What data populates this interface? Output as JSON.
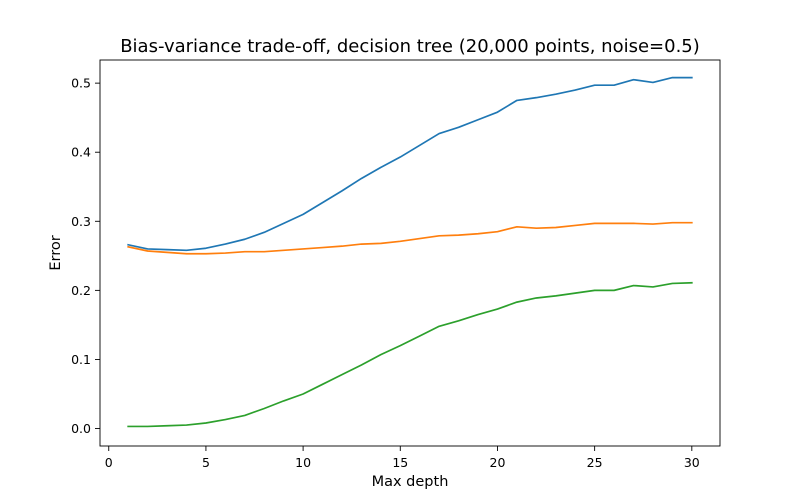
{
  "chart_data": {
    "type": "line",
    "title": "Bias-variance trade-off, decision tree (20,000 points, noise=0.5)",
    "xlabel": "Max depth",
    "ylabel": "Error",
    "xlim": [
      -0.45,
      31.45
    ],
    "ylim": [
      -0.0253,
      0.5335
    ],
    "xticks": [
      0,
      5,
      10,
      15,
      20,
      25,
      30
    ],
    "yticks": [
      0.0,
      0.1,
      0.2,
      0.3,
      0.4,
      0.5
    ],
    "xtick_labels": [
      "0",
      "5",
      "10",
      "15",
      "20",
      "25",
      "30"
    ],
    "ytick_labels": [
      "0.0",
      "0.1",
      "0.2",
      "0.3",
      "0.4",
      "0.5"
    ],
    "grid": false,
    "legend": "none",
    "x": [
      1,
      2,
      3,
      4,
      5,
      6,
      7,
      8,
      9,
      10,
      11,
      12,
      13,
      14,
      15,
      16,
      17,
      18,
      19,
      20,
      21,
      22,
      23,
      24,
      25,
      26,
      27,
      28,
      29,
      30
    ],
    "series": [
      {
        "color": "#1f77b4",
        "values": [
          0.266,
          0.26,
          0.259,
          0.258,
          0.261,
          0.267,
          0.274,
          0.284,
          0.297,
          0.31,
          0.327,
          0.344,
          0.362,
          0.378,
          0.393,
          0.41,
          0.427,
          0.436,
          0.447,
          0.458,
          0.475,
          0.479,
          0.484,
          0.49,
          0.497,
          0.497,
          0.505,
          0.501,
          0.508,
          0.508
        ]
      },
      {
        "color": "#ff7f0e",
        "values": [
          0.263,
          0.257,
          0.255,
          0.253,
          0.253,
          0.254,
          0.256,
          0.256,
          0.258,
          0.26,
          0.262,
          0.264,
          0.267,
          0.268,
          0.271,
          0.275,
          0.279,
          0.28,
          0.282,
          0.285,
          0.292,
          0.29,
          0.291,
          0.294,
          0.297,
          0.297,
          0.297,
          0.296,
          0.298,
          0.298
        ]
      },
      {
        "color": "#2ca02c",
        "values": [
          0.003,
          0.003,
          0.004,
          0.005,
          0.008,
          0.013,
          0.019,
          0.029,
          0.04,
          0.05,
          0.064,
          0.078,
          0.092,
          0.107,
          0.12,
          0.134,
          0.148,
          0.156,
          0.165,
          0.173,
          0.183,
          0.189,
          0.192,
          0.196,
          0.2,
          0.2,
          0.207,
          0.205,
          0.21,
          0.211
        ]
      }
    ]
  }
}
